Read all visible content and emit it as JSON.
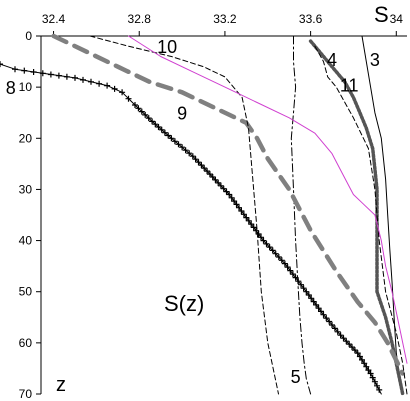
{
  "chart_data": {
    "type": "line",
    "title": "",
    "xlabel": "S",
    "ylabel": "z",
    "annotation": "S(z)",
    "x_axis_position": "top",
    "y_axis_inverted": true,
    "xlim": [
      32.15,
      34.05
    ],
    "ylim": [
      0,
      70
    ],
    "x_ticks": [
      32.4,
      32.8,
      33.2,
      33.6,
      34
    ],
    "x_tick_labels": [
      "32.4",
      "32.8",
      "33.2",
      "33.6",
      "34"
    ],
    "y_ticks": [
      0,
      10,
      20,
      30,
      40,
      50,
      60,
      70
    ],
    "y_tick_labels": [
      "0",
      "10",
      "20",
      "30",
      "40",
      "50",
      "60",
      "70"
    ],
    "grid": false,
    "series": [
      {
        "name": "3",
        "color": "#000000",
        "style": "thin",
        "label_x": 33.9,
        "label_z": 4.5,
        "x": [
          33.84,
          33.86,
          33.88,
          33.9,
          33.93,
          33.95,
          33.96,
          33.97,
          33.98,
          33.99,
          34.0,
          34.02,
          34.03
        ],
        "z": [
          0,
          5,
          10,
          15,
          20,
          28,
          35,
          42,
          48,
          55,
          62,
          68,
          70
        ]
      },
      {
        "name": "4",
        "color": "#555555",
        "style": "thick-dotted",
        "label_x": 33.7,
        "label_z": 4.5,
        "x": [
          33.6,
          33.64,
          33.7,
          33.76,
          33.8,
          33.83,
          33.86,
          33.89,
          33.9,
          33.91,
          33.91,
          33.91,
          33.91,
          33.91,
          33.95,
          33.98,
          34.0,
          34.02,
          34.03
        ],
        "z": [
          1,
          3,
          6,
          9,
          12,
          15,
          18,
          22,
          26,
          30,
          35,
          40,
          45,
          50,
          55,
          60,
          64,
          68,
          70
        ]
      },
      {
        "name": "5",
        "color": "#000000",
        "style": "dash-dot",
        "label_x": 33.53,
        "label_z": 66.5,
        "x": [
          33.52,
          33.52,
          33.53,
          33.52,
          33.51,
          33.52,
          33.53,
          33.54,
          33.55,
          33.56,
          33.57,
          33.58,
          33.6
        ],
        "z": [
          0,
          5,
          10,
          15,
          20,
          30,
          40,
          48,
          55,
          60,
          64,
          67,
          70
        ]
      },
      {
        "name": "8",
        "color": "#000000",
        "style": "plus-markers",
        "label_x": 32.2,
        "label_z": 10,
        "x": [
          32.15,
          32.22,
          32.35,
          32.5,
          32.65,
          32.72,
          32.78,
          32.86,
          32.95,
          33.05,
          33.13,
          33.22,
          33.3,
          33.38,
          33.48,
          33.58,
          33.66,
          33.74,
          33.82,
          33.88,
          33.93
        ],
        "z": [
          5.5,
          6.5,
          7.3,
          8.2,
          9.7,
          11,
          13.5,
          16.7,
          20,
          23.5,
          27,
          31,
          35.5,
          40,
          44.5,
          50,
          54.5,
          58.5,
          62,
          66,
          70
        ]
      },
      {
        "name": "9",
        "color": "#808080",
        "style": "thick-dashed",
        "label_x": 33.0,
        "label_z": 15,
        "x": [
          32.4,
          32.55,
          32.7,
          32.85,
          33.0,
          33.15,
          33.3,
          33.35,
          33.4,
          33.5,
          33.6,
          33.72,
          33.82,
          33.9,
          33.96,
          34.03
        ],
        "z": [
          0,
          3,
          6,
          9,
          11,
          14,
          17,
          20,
          24,
          30,
          38,
          46,
          52,
          56,
          60,
          66
        ]
      },
      {
        "name": "10",
        "color": "#000000",
        "style": "dashed",
        "label_x": 32.93,
        "label_z": 2,
        "x": [
          32.57,
          32.75,
          32.95,
          33.1,
          33.2,
          33.28,
          33.31,
          33.33,
          33.35,
          33.37,
          33.4,
          33.45
        ],
        "z": [
          0,
          2,
          4,
          6,
          8,
          12,
          18,
          28,
          38,
          50,
          60,
          70
        ]
      },
      {
        "name": "11",
        "color": "#000000",
        "style": "dashed",
        "label_x": 33.78,
        "label_z": 9.5,
        "x": [
          33.62,
          33.66,
          33.68,
          33.72,
          33.8,
          33.87,
          33.9,
          33.92,
          33.95,
          34.0,
          34.03,
          34.05
        ],
        "z": [
          2,
          5,
          8,
          10,
          16,
          22,
          30,
          40,
          50,
          58,
          64,
          70
        ]
      },
      {
        "name": "",
        "color": "#d040d0",
        "style": "thin",
        "x": [
          32.75,
          32.9,
          33.05,
          33.2,
          33.35,
          33.5,
          33.62,
          33.7,
          33.75,
          33.8,
          33.85,
          33.9,
          33.93,
          33.95,
          33.98,
          34.02,
          34.05
        ],
        "z": [
          0,
          4,
          7,
          10,
          13,
          16,
          19,
          23,
          27,
          31,
          33,
          35,
          40,
          45,
          50,
          58,
          64
        ]
      }
    ]
  }
}
